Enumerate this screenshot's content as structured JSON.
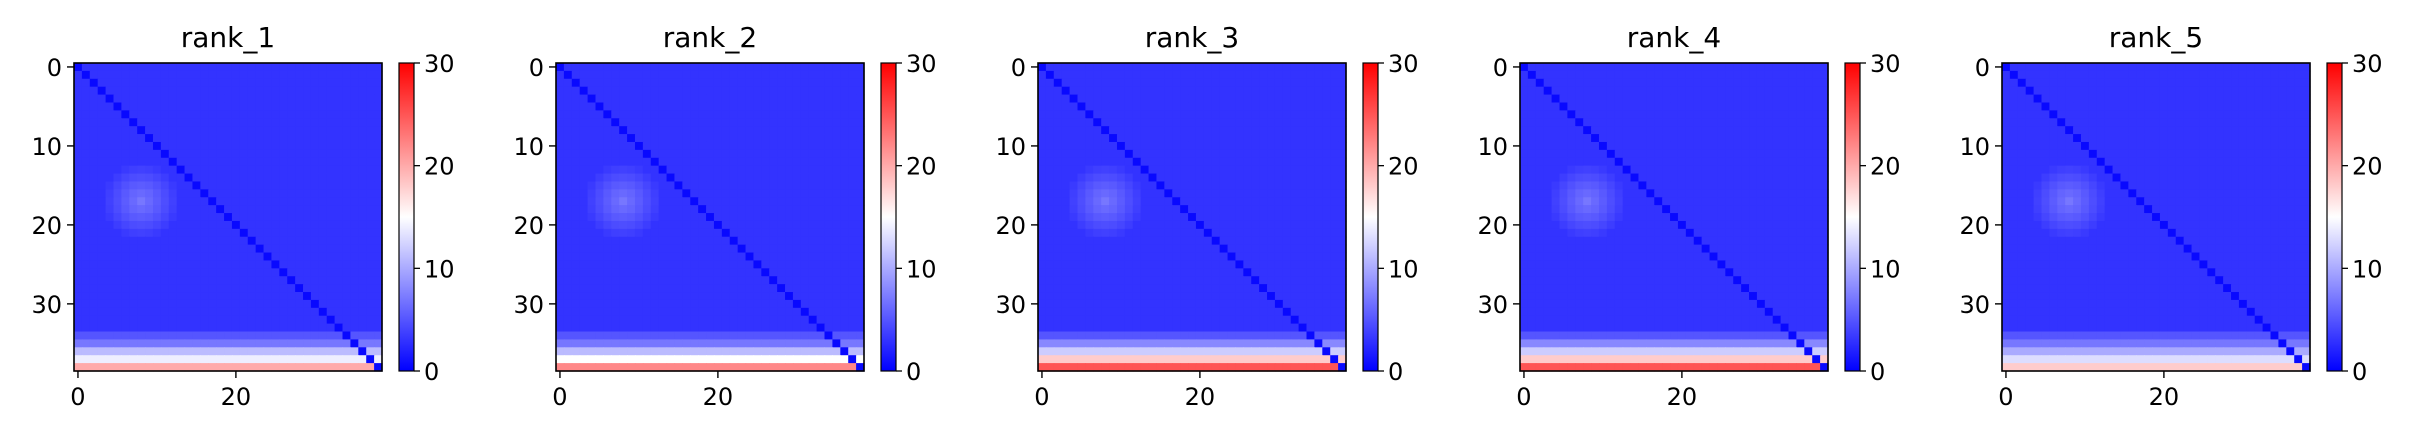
{
  "chart_data": [
    {
      "type": "heatmap",
      "title": "rank_1",
      "matrix_size": 39,
      "colormap": "bwr",
      "colorbar": {
        "vmin": 0,
        "vmax": 30,
        "ticks": [
          0,
          10,
          20,
          30
        ]
      },
      "xticks": [
        0,
        20
      ],
      "yticks": [
        0,
        10,
        20,
        30
      ],
      "row_profile": [
        {
          "from": 0,
          "to": 33,
          "value": 3
        },
        {
          "row": 34,
          "value": 5
        },
        {
          "row": 35,
          "value": 7
        },
        {
          "row": 36,
          "value": 11
        },
        {
          "row": 37,
          "value": 14
        },
        {
          "row": 38,
          "value": 20
        }
      ],
      "diagonal_value": 0.5,
      "blob": {
        "center": [
          17,
          8
        ],
        "value": 7
      }
    },
    {
      "type": "heatmap",
      "title": "rank_2",
      "matrix_size": 39,
      "colormap": "bwr",
      "colorbar": {
        "vmin": 0,
        "vmax": 30,
        "ticks": [
          0,
          10,
          20,
          30
        ]
      },
      "xticks": [
        0,
        20
      ],
      "yticks": [
        0,
        10,
        20,
        30
      ],
      "row_profile": [
        {
          "from": 0,
          "to": 33,
          "value": 3
        },
        {
          "row": 34,
          "value": 5
        },
        {
          "row": 35,
          "value": 7
        },
        {
          "row": 36,
          "value": 11
        },
        {
          "row": 37,
          "value": 15
        },
        {
          "row": 38,
          "value": 22
        }
      ],
      "diagonal_value": 0.5,
      "blob": {
        "center": [
          17,
          8
        ],
        "value": 7
      }
    },
    {
      "type": "heatmap",
      "title": "rank_3",
      "matrix_size": 39,
      "colormap": "bwr",
      "colorbar": {
        "vmin": 0,
        "vmax": 30,
        "ticks": [
          0,
          10,
          20,
          30
        ]
      },
      "xticks": [
        0,
        20
      ],
      "yticks": [
        0,
        10,
        20,
        30
      ],
      "row_profile": [
        {
          "from": 0,
          "to": 33,
          "value": 3
        },
        {
          "row": 34,
          "value": 5
        },
        {
          "row": 35,
          "value": 8
        },
        {
          "row": 36,
          "value": 12
        },
        {
          "row": 37,
          "value": 18
        },
        {
          "row": 38,
          "value": 25
        }
      ],
      "diagonal_value": 0.5,
      "blob": {
        "center": [
          17,
          8
        ],
        "value": 7
      }
    },
    {
      "type": "heatmap",
      "title": "rank_4",
      "matrix_size": 39,
      "colormap": "bwr",
      "colorbar": {
        "vmin": 0,
        "vmax": 30,
        "ticks": [
          0,
          10,
          20,
          30
        ]
      },
      "xticks": [
        0,
        20
      ],
      "yticks": [
        0,
        10,
        20,
        30
      ],
      "row_profile": [
        {
          "from": 0,
          "to": 33,
          "value": 3
        },
        {
          "row": 34,
          "value": 5
        },
        {
          "row": 35,
          "value": 8
        },
        {
          "row": 36,
          "value": 12
        },
        {
          "row": 37,
          "value": 18
        },
        {
          "row": 38,
          "value": 25
        }
      ],
      "diagonal_value": 0.5,
      "blob": {
        "center": [
          17,
          8
        ],
        "value": 7
      }
    },
    {
      "type": "heatmap",
      "title": "rank_5",
      "matrix_size": 39,
      "colormap": "bwr",
      "colorbar": {
        "vmin": 0,
        "vmax": 30,
        "ticks": [
          0,
          10,
          20,
          30
        ]
      },
      "xticks": [
        0,
        20
      ],
      "yticks": [
        0,
        10,
        20,
        30
      ],
      "row_profile": [
        {
          "from": 0,
          "to": 33,
          "value": 3
        },
        {
          "row": 34,
          "value": 5
        },
        {
          "row": 35,
          "value": 7
        },
        {
          "row": 36,
          "value": 10
        },
        {
          "row": 37,
          "value": 13
        },
        {
          "row": 38,
          "value": 18
        }
      ],
      "diagonal_value": 0.5,
      "blob": {
        "center": [
          17,
          8
        ],
        "value": 7
      }
    }
  ]
}
